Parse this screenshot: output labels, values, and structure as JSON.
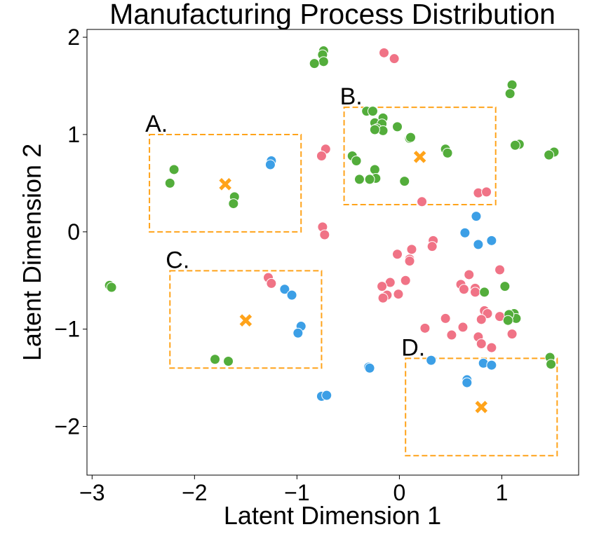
{
  "chart_data": {
    "type": "scatter",
    "title": "Manufacturing Process Distribution",
    "xlabel": "Latent Dimension 1",
    "ylabel": "Latent Dimension 2",
    "xlim": [
      -3.05,
      1.75
    ],
    "ylim": [
      -2.5,
      2.08
    ],
    "xticks": [
      -3,
      -2,
      -1,
      0,
      1
    ],
    "xtick_labels": [
      "−3",
      "−2",
      "−1",
      "0",
      "1"
    ],
    "yticks": [
      -2,
      -1,
      0,
      1,
      2
    ],
    "ytick_labels": [
      "−2",
      "−1",
      "0",
      "1",
      "2"
    ],
    "grid": false,
    "series": [
      {
        "color": "#f07386",
        "points": [
          [
            -0.15,
            1.84
          ],
          [
            -0.05,
            1.78
          ],
          [
            -0.72,
            0.85
          ],
          [
            -0.76,
            0.78
          ],
          [
            -0.75,
            0.05
          ],
          [
            -0.73,
            -0.03
          ],
          [
            0.22,
            0.31
          ],
          [
            0.77,
            0.4
          ],
          [
            0.85,
            0.41
          ],
          [
            0.33,
            -0.09
          ],
          [
            0.32,
            -0.15
          ],
          [
            0.12,
            -0.18
          ],
          [
            0.1,
            -0.28
          ],
          [
            0.1,
            -0.3
          ],
          [
            -0.02,
            -0.23
          ],
          [
            0.06,
            -0.5
          ],
          [
            -0.09,
            -0.52
          ],
          [
            -0.17,
            -0.56
          ],
          [
            -0.01,
            -0.64
          ],
          [
            -0.12,
            -0.65
          ],
          [
            -0.16,
            -0.68
          ],
          [
            0.68,
            -0.44
          ],
          [
            0.6,
            -0.54
          ],
          [
            0.63,
            -0.59
          ],
          [
            0.74,
            -0.58
          ],
          [
            0.74,
            -0.62
          ],
          [
            0.98,
            -0.39
          ],
          [
            0.83,
            -0.81
          ],
          [
            0.86,
            -0.84
          ],
          [
            0.8,
            -0.9
          ],
          [
            0.98,
            -0.87
          ],
          [
            0.45,
            -0.89
          ],
          [
            0.62,
            -0.98
          ],
          [
            0.25,
            -0.99
          ],
          [
            0.51,
            -1.06
          ],
          [
            0.77,
            -1.08
          ],
          [
            0.8,
            -1.15
          ],
          [
            0.9,
            -1.19
          ],
          [
            1.1,
            -1.05
          ],
          [
            -1.28,
            -0.47
          ],
          [
            -1.25,
            -0.53
          ]
        ]
      },
      {
        "color": "#53ad3b",
        "points": [
          [
            -0.74,
            1.86
          ],
          [
            -0.75,
            1.82
          ],
          [
            -0.74,
            1.75
          ],
          [
            -0.83,
            1.73
          ],
          [
            -0.32,
            1.24
          ],
          [
            -0.26,
            1.24
          ],
          [
            -0.16,
            1.17
          ],
          [
            -0.24,
            1.12
          ],
          [
            -0.17,
            1.11
          ],
          [
            -0.22,
            1.06
          ],
          [
            -0.16,
            1.04
          ],
          [
            -0.24,
            1.05
          ],
          [
            -0.02,
            1.08
          ],
          [
            0.1,
            0.96
          ],
          [
            0.11,
            0.97
          ],
          [
            -0.46,
            0.78
          ],
          [
            -0.42,
            0.73
          ],
          [
            -0.24,
            0.64
          ],
          [
            -0.23,
            0.55
          ],
          [
            -0.29,
            0.54
          ],
          [
            -0.39,
            0.54
          ],
          [
            0.05,
            0.52
          ],
          [
            0.45,
            0.85
          ],
          [
            0.47,
            0.81
          ],
          [
            1.1,
            1.51
          ],
          [
            1.08,
            1.42
          ],
          [
            1.17,
            0.9
          ],
          [
            1.13,
            0.89
          ],
          [
            1.51,
            0.82
          ],
          [
            1.46,
            0.79
          ],
          [
            0.83,
            -0.62
          ],
          [
            1.03,
            -0.56
          ],
          [
            1.12,
            -0.84
          ],
          [
            1.14,
            -0.89
          ],
          [
            1.07,
            -0.85
          ],
          [
            1.06,
            -0.91
          ],
          [
            1.47,
            -1.29
          ],
          [
            1.48,
            -1.36
          ],
          [
            -2.2,
            0.64
          ],
          [
            -2.24,
            0.5
          ],
          [
            -1.61,
            0.36
          ],
          [
            -1.62,
            0.29
          ],
          [
            -2.83,
            -0.55
          ],
          [
            -2.81,
            -0.57
          ],
          [
            -1.8,
            -1.31
          ],
          [
            -1.67,
            -1.33
          ]
        ]
      },
      {
        "color": "#3c9fe6",
        "points": [
          [
            -1.25,
            0.73
          ],
          [
            -1.26,
            0.69
          ],
          [
            0.75,
            0.16
          ],
          [
            0.64,
            -0.01
          ],
          [
            0.9,
            -0.09
          ],
          [
            0.77,
            -0.13
          ],
          [
            -1.12,
            -0.59
          ],
          [
            -1.05,
            -0.65
          ],
          [
            -0.96,
            -0.97
          ],
          [
            -0.99,
            -1.04
          ],
          [
            -0.3,
            -1.39
          ],
          [
            -0.29,
            -1.4
          ],
          [
            0.31,
            -1.32
          ],
          [
            0.66,
            -1.52
          ],
          [
            0.66,
            -1.55
          ],
          [
            0.82,
            -1.35
          ],
          [
            0.9,
            -1.37
          ],
          [
            -0.76,
            -1.69
          ],
          [
            -0.71,
            -1.68
          ]
        ]
      }
    ],
    "regions": [
      {
        "label": "A.",
        "x_range": [
          -2.44,
          -0.96
        ],
        "y_range": [
          0.0,
          1.0
        ],
        "center": [
          -1.7,
          0.49
        ]
      },
      {
        "label": "B.",
        "x_range": [
          -0.54,
          0.94
        ],
        "y_range": [
          0.28,
          1.28
        ],
        "center": [
          0.2,
          0.77
        ]
      },
      {
        "label": "C.",
        "x_range": [
          -2.24,
          -0.76
        ],
        "y_range": [
          -1.4,
          -0.4
        ],
        "center": [
          -1.5,
          -0.91
        ]
      },
      {
        "label": "D.",
        "x_range": [
          0.06,
          1.54
        ],
        "y_range": [
          -2.3,
          -1.3
        ],
        "center": [
          0.8,
          -1.8
        ]
      }
    ],
    "colors": {
      "region_box": "#ffa31a",
      "center_marker": "#ffa31a"
    }
  }
}
